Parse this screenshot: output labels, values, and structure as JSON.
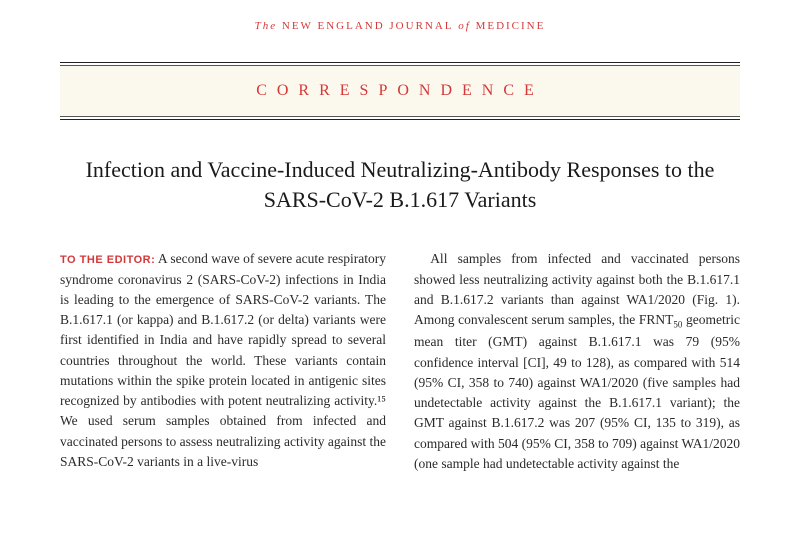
{
  "journal": {
    "prefix": "The",
    "name_part1": "NEW ENGLAND JOURNAL",
    "infix": "of",
    "name_part2": "MEDICINE"
  },
  "section": {
    "label": "CORRESPONDENCE"
  },
  "article": {
    "title": "Infection and Vaccine-Induced Neutralizing-Antibody Responses to the SARS-CoV-2 B.1.617 Variants"
  },
  "body": {
    "editor_label": "TO THE EDITOR:",
    "col1": " A second wave of severe acute respiratory syndrome coronavirus 2 (SARS-CoV-2) infections in India is leading to the emergence of SARS-CoV-2 variants. The B.1.617.1 (or kappa) and B.1.617.2 (or delta) variants were first identified in India and have rapidly spread to several countries throughout the world. These variants contain mutations within the spike protein located in antigenic sites recognized by antibodies with potent neutralizing activity.¹⁵ We used serum samples obtained from infected and vaccinated persons to assess neutralizing activity against the SARS-CoV-2 variants in a live-virus",
    "col2_a": "All samples from infected and vaccinated persons showed less neutralizing activity against both the B.1.617.1 and B.1.617.2 variants than against WA1/2020 (Fig. 1). Among convalescent serum samples, the FRNT",
    "col2_sub": "50",
    "col2_b": " geometric mean titer (GMT) against B.1.617.1 was 79 (95% confidence interval [CI], 49 to 128), as compared with 514 (95% CI, 358 to 740) against WA1/2020 (five samples had undetectable activity against the B.1.617.1 variant); the GMT against B.1.617.2 was 207 (95% CI, 135 to 319), as compared with 504 (95% CI, 358 to 709) against WA1/2020 (one sample had undetectable activity against the"
  },
  "colors": {
    "accent": "#d43838",
    "text": "#2a2a2a",
    "box_bg": "#fbf8ee"
  }
}
